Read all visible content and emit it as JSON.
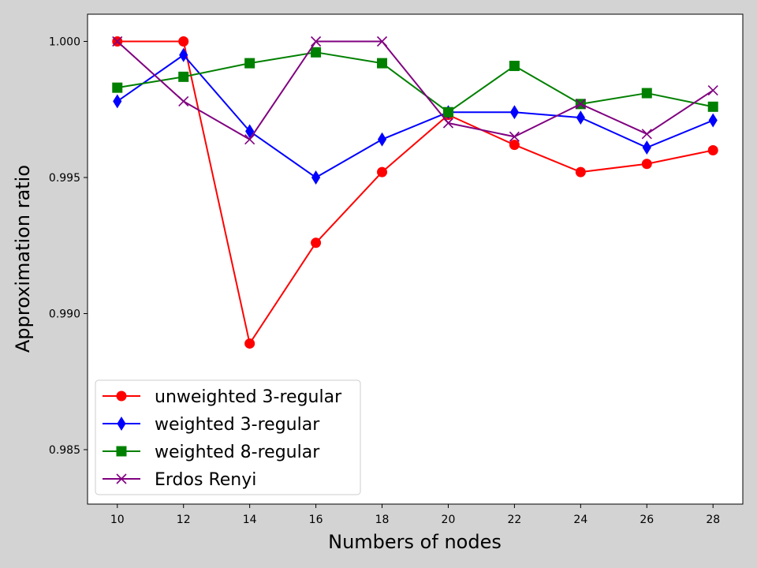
{
  "chart_data": {
    "type": "line",
    "title": "",
    "xlabel": "Numbers of nodes",
    "ylabel": "Approximation ratio",
    "x": [
      10,
      12,
      14,
      16,
      18,
      20,
      22,
      24,
      26,
      28
    ],
    "xlim": [
      9.1,
      28.9
    ],
    "ylim": [
      0.983,
      1.001
    ],
    "xticks": [
      10,
      12,
      14,
      16,
      18,
      20,
      22,
      24,
      26,
      28
    ],
    "xtick_labels": [
      "10",
      "12",
      "14",
      "16",
      "18",
      "20",
      "22",
      "24",
      "26",
      "28"
    ],
    "yticks": [
      0.985,
      0.99,
      0.995,
      1.0
    ],
    "ytick_labels": [
      "0.985",
      "0.990",
      "0.995",
      "1.000"
    ],
    "grid": false,
    "legend_position": "lower-left",
    "series": [
      {
        "name": "unweighted 3-regular",
        "color": "#ff0000",
        "marker": "circle",
        "values": [
          1.0,
          1.0,
          0.9889,
          0.9926,
          0.9952,
          0.9973,
          0.9962,
          0.9952,
          0.9955,
          0.996
        ]
      },
      {
        "name": "weighted 3-regular",
        "color": "#0000ff",
        "marker": "thin-diamond",
        "values": [
          0.9978,
          0.9995,
          0.9967,
          0.995,
          0.9964,
          0.9974,
          0.9974,
          0.9972,
          0.9961,
          0.9971
        ]
      },
      {
        "name": "weighted 8-regular",
        "color": "#008000",
        "marker": "square",
        "values": [
          0.9983,
          0.9987,
          0.9992,
          0.9996,
          0.9992,
          0.9974,
          0.9991,
          0.9977,
          0.9981,
          0.9976
        ]
      },
      {
        "name": "Erdos Renyi",
        "color": "#800080",
        "marker": "x",
        "values": [
          1.0,
          0.9978,
          0.9964,
          1.0,
          1.0,
          0.997,
          0.9965,
          0.9977,
          0.9966,
          0.9982
        ]
      }
    ]
  }
}
